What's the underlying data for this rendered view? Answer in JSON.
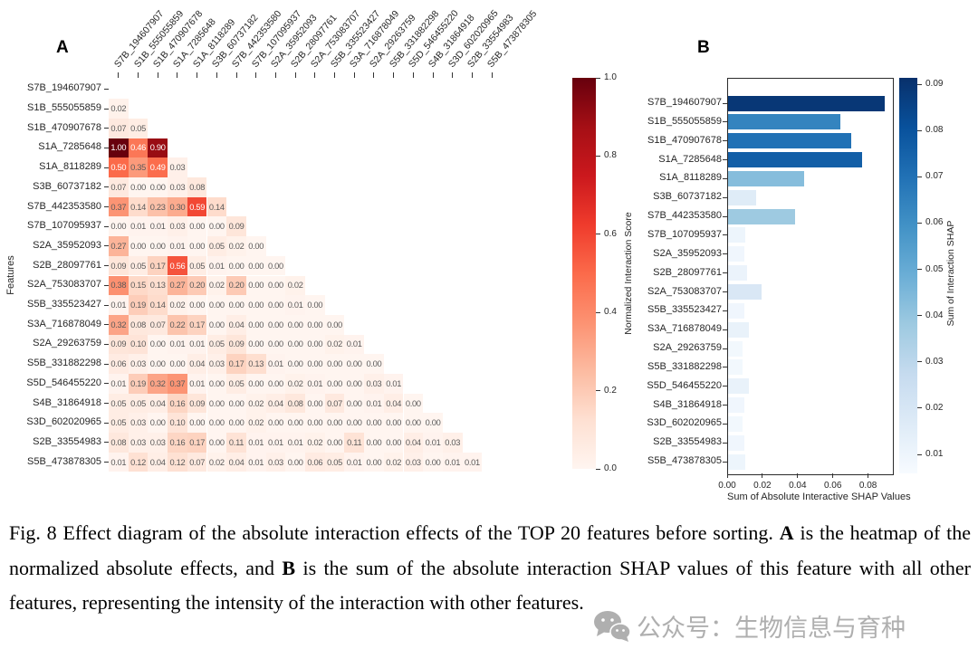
{
  "panelA": {
    "label": "A",
    "ylabel": "Features",
    "colorbar": {
      "label": "Normalized Interaction Score",
      "ticks": [
        "1.0",
        "0.8",
        "0.6",
        "0.4",
        "0.2",
        "0.0"
      ]
    }
  },
  "panelB": {
    "label": "B",
    "xlabel": "Sum of Absolute Interactive SHAP Values",
    "colorbar": {
      "label": "Sum of Interaction SHAP",
      "ticks": [
        "0.09",
        "0.08",
        "0.07",
        "0.06",
        "0.05",
        "0.04",
        "0.03",
        "0.02",
        "0.01"
      ]
    }
  },
  "features": [
    "S7B_194607907",
    "S1B_555055859",
    "S1B_470907678",
    "S1A_7285648",
    "S1A_8118289",
    "S3B_60737182",
    "S7B_442353580",
    "S7B_107095937",
    "S2A_35952093",
    "S2B_28097761",
    "S2A_753083707",
    "S5B_335523427",
    "S3A_716878049",
    "S2A_29263759",
    "S5B_331882298",
    "S5D_546455220",
    "S4B_31864918",
    "S3D_602020965",
    "S2B_33554983",
    "S5B_473878305"
  ],
  "chart_data": [
    {
      "type": "heatmap",
      "title": "Lower-triangle heatmap of normalized absolute interaction effects",
      "ylabel": "Features",
      "categories": "features (both axes, same order)",
      "colormap": "Reds",
      "vmin": 0.0,
      "vmax": 1.0,
      "annotated": true,
      "legend_label": "Normalized Interaction Score",
      "rows": [
        [],
        [
          0.02
        ],
        [
          0.07,
          0.05
        ],
        [
          1.0,
          0.46,
          0.9
        ],
        [
          0.5,
          0.35,
          0.49,
          0.03
        ],
        [
          0.07,
          0.0,
          0.0,
          0.03,
          0.08
        ],
        [
          0.37,
          0.14,
          0.23,
          0.3,
          0.59,
          0.14
        ],
        [
          0.0,
          0.01,
          0.01,
          0.03,
          0.0,
          0.0,
          0.09
        ],
        [
          0.27,
          0.0,
          0.0,
          0.01,
          0.0,
          0.05,
          0.02,
          0.0
        ],
        [
          0.09,
          0.05,
          0.17,
          0.56,
          0.05,
          0.01,
          0.0,
          0.0,
          0.0
        ],
        [
          0.38,
          0.15,
          0.13,
          0.27,
          0.2,
          0.02,
          0.2,
          0.0,
          0.0,
          0.02
        ],
        [
          0.01,
          0.19,
          0.14,
          0.02,
          0.0,
          0.0,
          0.0,
          0.0,
          0.0,
          0.01,
          0.0
        ],
        [
          0.32,
          0.08,
          0.07,
          0.22,
          0.17,
          0.0,
          0.04,
          0.0,
          0.0,
          0.0,
          0.0,
          0.0
        ],
        [
          0.09,
          0.1,
          0.0,
          0.01,
          0.01,
          0.05,
          0.09,
          0.0,
          0.0,
          0.0,
          0.0,
          0.02,
          0.01
        ],
        [
          0.06,
          0.03,
          0.0,
          0.0,
          0.04,
          0.03,
          0.17,
          0.13,
          0.01,
          0.0,
          0.0,
          0.0,
          0.0,
          0.0
        ],
        [
          0.01,
          0.19,
          0.32,
          0.37,
          0.01,
          0.0,
          0.05,
          0.0,
          0.0,
          0.02,
          0.01,
          0.0,
          0.0,
          0.03,
          0.01
        ],
        [
          0.05,
          0.05,
          0.04,
          0.16,
          0.09,
          0.0,
          0.0,
          0.02,
          0.04,
          0.08,
          0.0,
          0.07,
          0.0,
          0.01,
          0.04,
          0.0
        ],
        [
          0.05,
          0.03,
          0.0,
          0.1,
          0.0,
          0.0,
          0.0,
          0.02,
          0.0,
          0.0,
          0.0,
          0.0,
          0.0,
          0.0,
          0.0,
          0.0,
          0.0
        ],
        [
          0.08,
          0.03,
          0.03,
          0.16,
          0.17,
          0.0,
          0.11,
          0.01,
          0.01,
          0.01,
          0.02,
          0.0,
          0.11,
          0.0,
          0.0,
          0.04,
          0.01,
          0.03
        ],
        [
          0.01,
          0.12,
          0.04,
          0.12,
          0.07,
          0.02,
          0.04,
          0.01,
          0.03,
          0.0,
          0.06,
          0.05,
          0.01,
          0.0,
          0.02,
          0.03,
          0.0,
          0.01,
          0.01
        ]
      ],
      "colormap_anchors": [
        "#fff5f0",
        "#fee0d2",
        "#fcbba1",
        "#fc9272",
        "#fb6a4a",
        "#ef3b2c",
        "#cb181d",
        "#a50f15",
        "#67000d"
      ]
    },
    {
      "type": "bar",
      "orientation": "horizontal",
      "title": "Sum of absolute interaction SHAP values per feature",
      "xlabel": "Sum of Absolute Interactive SHAP Values",
      "xticks": [
        0.0,
        0.02,
        0.04,
        0.06,
        0.08
      ],
      "xlim": [
        0.0,
        0.0936
      ],
      "categories": "features (same order)",
      "values": [
        0.089,
        0.064,
        0.07,
        0.076,
        0.043,
        0.016,
        0.038,
        0.01,
        0.009,
        0.011,
        0.019,
        0.009,
        0.012,
        0.008,
        0.008,
        0.012,
        0.009,
        0.008,
        0.009,
        0.01
      ],
      "colormap": "Blues",
      "colorbar_range": [
        0.0059,
        0.0914
      ],
      "legend_label": "Sum of Interaction SHAP",
      "colormap_anchors": [
        "#f7fbff",
        "#deebf7",
        "#c6dbef",
        "#9ecae1",
        "#6baed6",
        "#4292c6",
        "#2171b5",
        "#08519c",
        "#08306b"
      ]
    }
  ],
  "caption": {
    "parts": [
      {
        "text": "Fig. 8 Effect diagram of the absolute interaction effects of the TOP 20 features before sorting. ",
        "bold": false
      },
      {
        "text": "A",
        "bold": true
      },
      {
        "text": " is the heatmap of the normalized absolute effects, and ",
        "bold": false
      },
      {
        "text": "B",
        "bold": true
      },
      {
        "text": " is the sum of the absolute interaction SHAP values of this feature with all other features, representing the intensity of the interaction with other features.",
        "bold": false
      }
    ]
  },
  "watermark": {
    "text": "公众号：生物信息与育种",
    "color": "#9c9c9c"
  }
}
